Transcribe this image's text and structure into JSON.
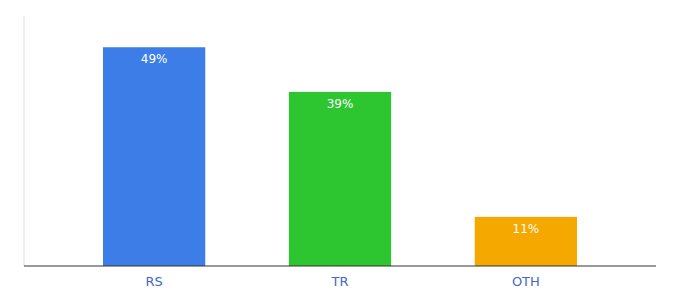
{
  "chart_data": {
    "type": "bar",
    "categories": [
      "RS",
      "TR",
      "OTH"
    ],
    "values": [
      49,
      39,
      11
    ],
    "value_labels": [
      "49%",
      "39%",
      "11%"
    ],
    "colors": [
      "#3d7de8",
      "#2dc631",
      "#f5a800"
    ],
    "ylim": [
      0,
      56
    ],
    "data_labels": true,
    "tick_labels": "x"
  }
}
